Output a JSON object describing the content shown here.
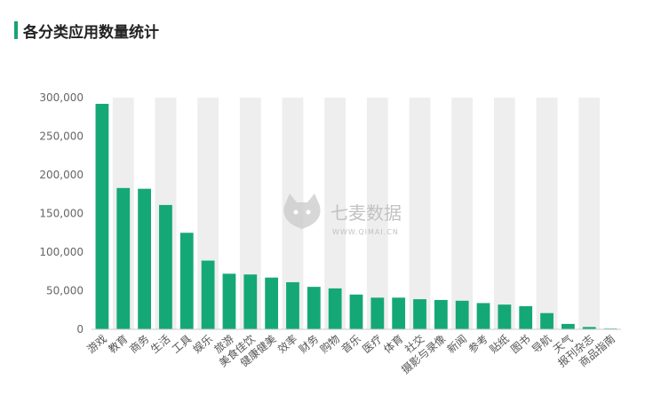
{
  "header": {
    "title": "各分类应用数量统计"
  },
  "watermark": {
    "brand": "七麦数据",
    "domain": "WWW.QIMAI.CN"
  },
  "colors": {
    "bar": "#15a877",
    "band": "#eeeeee",
    "axis": "#cccccc",
    "tick_text": "#666666",
    "label_text": "#555555"
  },
  "chart_data": {
    "type": "bar",
    "title": "各分类应用数量统计",
    "xlabel": "",
    "ylabel": "",
    "ylim": [
      0,
      300000
    ],
    "yticks": [
      0,
      50000,
      100000,
      150000,
      200000,
      250000,
      300000
    ],
    "ytick_labels": [
      "0",
      "50,000",
      "100,000",
      "150,000",
      "200,000",
      "250,000",
      "300,000"
    ],
    "grid": "alternating vertical bands",
    "categories": [
      "游戏",
      "教育",
      "商务",
      "生活",
      "工具",
      "娱乐",
      "旅游",
      "美食佳饮",
      "健康健美",
      "效率",
      "财务",
      "购物",
      "音乐",
      "医疗",
      "体育",
      "社交",
      "摄影与录像",
      "新闻",
      "参考",
      "贴纸",
      "图书",
      "导航",
      "天气",
      "报刊杂志",
      "商品指南"
    ],
    "values": [
      292000,
      183000,
      182000,
      161000,
      125000,
      89000,
      72000,
      71000,
      67000,
      61000,
      55000,
      53000,
      45000,
      41000,
      41000,
      39000,
      38000,
      37000,
      34000,
      32000,
      30000,
      21000,
      7000,
      3000,
      1000
    ]
  }
}
